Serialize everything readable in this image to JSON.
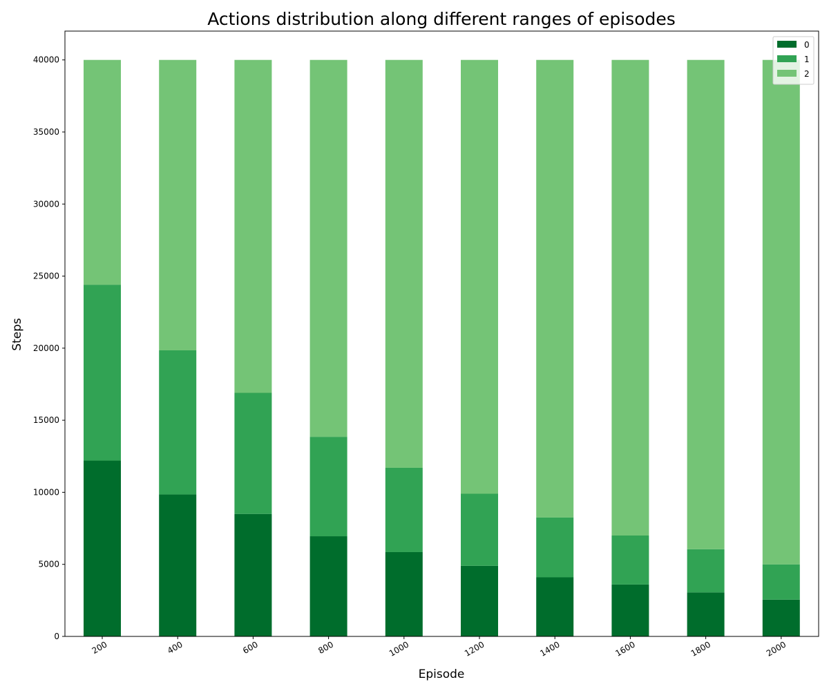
{
  "chart_data": {
    "type": "bar",
    "stacked": true,
    "title": "Actions distribution along different ranges of episodes",
    "xlabel": "Episode",
    "ylabel": "Steps",
    "categories": [
      "200",
      "400",
      "600",
      "800",
      "1000",
      "1200",
      "1400",
      "1600",
      "1800",
      "2000"
    ],
    "series": [
      {
        "name": "0",
        "color": "#006d2c",
        "values": [
          12200,
          9850,
          8500,
          6950,
          5850,
          4900,
          4100,
          3600,
          3050,
          2550
        ]
      },
      {
        "name": "1",
        "color": "#31a354",
        "values": [
          12200,
          10000,
          8400,
          6900,
          5850,
          5000,
          4150,
          3400,
          3000,
          2450
        ]
      },
      {
        "name": "2",
        "color": "#74c476",
        "values": [
          15600,
          20150,
          23100,
          26150,
          28300,
          30100,
          31750,
          33000,
          33950,
          35000
        ]
      }
    ],
    "ylim": [
      0,
      42000
    ],
    "yticks": [
      0,
      5000,
      10000,
      15000,
      20000,
      25000,
      30000,
      35000,
      40000
    ],
    "xtick_rotation": -30,
    "grid": false,
    "legend_position": "top-right"
  }
}
